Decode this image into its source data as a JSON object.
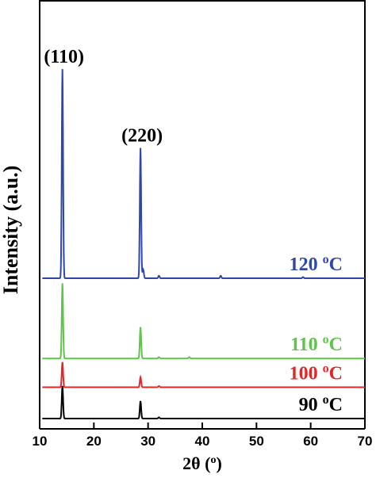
{
  "chart_data": {
    "type": "line",
    "xlabel": "2θ (o)",
    "ylabel": "Intensity (a.u.)",
    "xlim": [
      10,
      70
    ],
    "xticks": [
      10,
      20,
      30,
      40,
      50,
      60,
      70
    ],
    "yticks": [],
    "grid": false,
    "legend": "none",
    "annotations": [
      {
        "text": "(110)",
        "x": 14.2
      },
      {
        "text": "(220)",
        "x": 28.6
      }
    ],
    "series": [
      {
        "name": "90 oC",
        "color": "#000000",
        "baseline": 0.0,
        "peaks": [
          {
            "x": 14.2,
            "height": 0.26
          },
          {
            "x": 28.6,
            "height": 0.14
          },
          {
            "x": 32.0,
            "height": 0.01
          }
        ]
      },
      {
        "name": "100 oC",
        "color": "#e32626",
        "baseline": 0.25,
        "peaks": [
          {
            "x": 14.2,
            "height": 0.2
          },
          {
            "x": 28.6,
            "height": 0.08
          },
          {
            "x": 32.0,
            "height": 0.01
          }
        ]
      },
      {
        "name": "110 oC",
        "color": "#5ec44a",
        "baseline": 0.48,
        "peaks": [
          {
            "x": 14.2,
            "height": 0.6
          },
          {
            "x": 28.6,
            "height": 0.25
          },
          {
            "x": 32.0,
            "height": 0.01
          },
          {
            "x": 37.6,
            "height": 0.01
          }
        ]
      },
      {
        "name": "120 oC",
        "color": "#2f47a8",
        "baseline": 1.12,
        "peaks": [
          {
            "x": 14.2,
            "height": 1.67
          },
          {
            "x": 28.6,
            "height": 1.04
          },
          {
            "x": 29.1,
            "height": 0.07
          },
          {
            "x": 32.0,
            "height": 0.02
          },
          {
            "x": 43.4,
            "height": 0.02
          },
          {
            "x": 58.6,
            "height": 0.01
          }
        ]
      }
    ]
  }
}
